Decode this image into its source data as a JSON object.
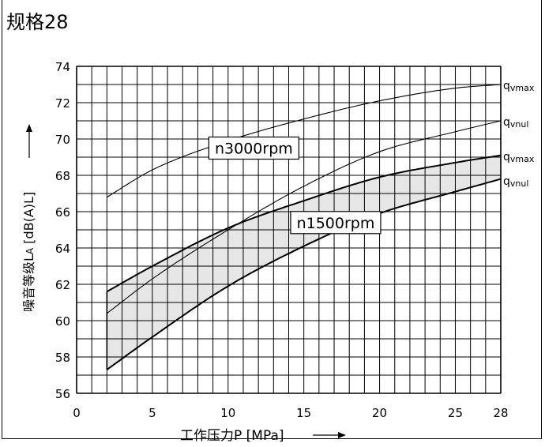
{
  "chart_data": {
    "type": "line",
    "title": "规格28",
    "xlabel": "工作压力P [MPa]",
    "ylabel": "噪音等级L",
    "ylabel_sub": "A",
    "ylabel_tail": " [dB(A)L]",
    "xlim": [
      0,
      28
    ],
    "ylim": [
      56,
      74
    ],
    "x_ticks": [
      0,
      5,
      10,
      15,
      20,
      25,
      28
    ],
    "y_ticks": [
      56,
      58,
      60,
      62,
      64,
      66,
      68,
      70,
      72,
      74
    ],
    "grid": true,
    "series": [
      {
        "group": "3000",
        "name_main": "q",
        "name_sub": "vmax",
        "x": [
          2,
          5,
          10,
          15,
          20,
          25,
          28
        ],
        "values": [
          66.8,
          68.3,
          69.9,
          71.1,
          72.1,
          72.8,
          73.0
        ]
      },
      {
        "group": "3000",
        "name_main": "q",
        "name_sub": "vnul",
        "x": [
          2,
          5,
          10,
          15,
          20,
          25,
          28
        ],
        "values": [
          60.4,
          62.3,
          65.0,
          67.4,
          69.3,
          70.4,
          71.0
        ]
      },
      {
        "group": "1500",
        "name_main": "q",
        "name_sub": "vmax",
        "x": [
          2,
          5,
          10,
          15,
          20,
          25,
          28
        ],
        "values": [
          61.6,
          63.0,
          65.1,
          66.6,
          67.9,
          68.7,
          69.1
        ]
      },
      {
        "group": "1500",
        "name_main": "q",
        "name_sub": "vnul",
        "x": [
          2,
          5,
          10,
          15,
          20,
          25,
          28
        ],
        "values": [
          57.3,
          59.1,
          61.9,
          64.1,
          65.9,
          67.1,
          67.8
        ]
      }
    ],
    "annotations": [
      {
        "text": "n3000rpm",
        "x": 11.7,
        "y": 69.5
      },
      {
        "text": "n1500rpm",
        "x": 17.1,
        "y": 65.4
      }
    ],
    "band_color": "#e6e6e6"
  }
}
